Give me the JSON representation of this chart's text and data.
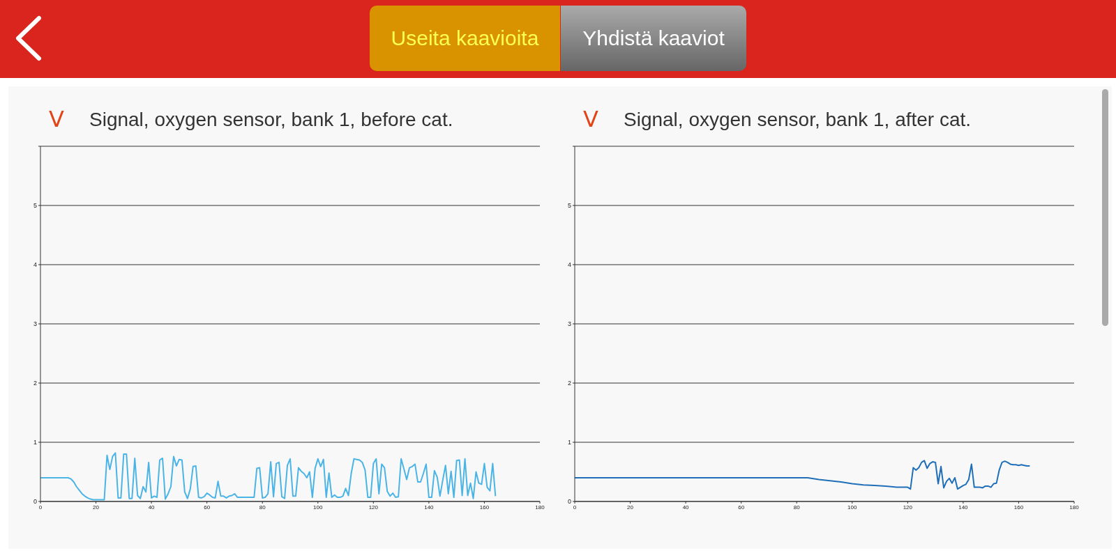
{
  "chart_data": [
    {
      "type": "line",
      "title": "Signal, oxygen sensor, bank 1, before cat.",
      "ylabel": "V",
      "annotations": [
        "Useita kaavioita",
        "Yhdistä kaaviot"
      ],
      "xlim": [
        0,
        180
      ],
      "xticks": [
        0,
        20,
        40,
        60,
        80,
        100,
        120,
        140,
        160,
        180
      ],
      "ylim": [
        0,
        6
      ],
      "yticks": [
        0,
        1,
        2,
        3,
        4,
        5,
        {
          "value": 6,
          "label": null
        }
      ],
      "grid": "y",
      "x": [
        0,
        10,
        11,
        12,
        13,
        14,
        15,
        16,
        17,
        18,
        19,
        23,
        24,
        25,
        26,
        27,
        28,
        29,
        30,
        31,
        32,
        33,
        34,
        35,
        36,
        37,
        38,
        39,
        40,
        41,
        42,
        43,
        44,
        45,
        46,
        47,
        48,
        49,
        50,
        51,
        52,
        53,
        54,
        55,
        56,
        57,
        58,
        59,
        60,
        61,
        62,
        63,
        64,
        65,
        66,
        67,
        68,
        69,
        70,
        71,
        77,
        78,
        79,
        80,
        81,
        82,
        83,
        84,
        85,
        86,
        87,
        88,
        89,
        90,
        91,
        92,
        93,
        94,
        95,
        96,
        97,
        98,
        99,
        100,
        101,
        102,
        103,
        104,
        105,
        106,
        107,
        108,
        109,
        110,
        111,
        112,
        113,
        114,
        115,
        116,
        117,
        118,
        119,
        120,
        121,
        122,
        123,
        124,
        125,
        126,
        127,
        128,
        129,
        130,
        131,
        132,
        133,
        134,
        135,
        136,
        137,
        138,
        139,
        140,
        141,
        142,
        143,
        144,
        145,
        146,
        147,
        148,
        149,
        150,
        151,
        152,
        153,
        154,
        155,
        156,
        157,
        158,
        159,
        160,
        161,
        162,
        163,
        164
      ],
      "series": [
        {
          "color": "#4ab4e6",
          "values": [
            0.4,
            0.4,
            0.38,
            0.33,
            0.25,
            0.19,
            0.13,
            0.09,
            0.06,
            0.04,
            0.03,
            0.03,
            0.78,
            0.54,
            0.76,
            0.82,
            0.06,
            0.06,
            0.8,
            0.8,
            0.05,
            0.05,
            0.73,
            0.1,
            0.05,
            0.25,
            0.16,
            0.66,
            0.06,
            0.09,
            0.07,
            0.7,
            0.73,
            0.04,
            0.13,
            0.25,
            0.76,
            0.6,
            0.71,
            0.7,
            0.16,
            0.05,
            0.21,
            0.59,
            0.6,
            0.07,
            0.06,
            0.08,
            0.14,
            0.11,
            0.07,
            0.06,
            0.34,
            0.09,
            0.09,
            0.06,
            0.09,
            0.1,
            0.13,
            0.07,
            0.07,
            0.56,
            0.57,
            0.06,
            0.07,
            0.13,
            0.67,
            0.08,
            0.64,
            0.66,
            0.08,
            0.05,
            0.61,
            0.72,
            0.09,
            0.09,
            0.57,
            0.51,
            0.47,
            0.4,
            0.5,
            0.07,
            0.56,
            0.72,
            0.59,
            0.71,
            0.07,
            0.48,
            0.07,
            0.11,
            0.07,
            0.07,
            0.09,
            0.22,
            0.1,
            0.47,
            0.72,
            0.71,
            0.7,
            0.66,
            0.53,
            0.07,
            0.07,
            0.64,
            0.72,
            0.13,
            0.63,
            0.57,
            0.17,
            0.09,
            0.14,
            0.07,
            0.08,
            0.72,
            0.55,
            0.37,
            0.57,
            0.59,
            0.63,
            0.33,
            0.33,
            0.47,
            0.63,
            0.07,
            0.07,
            0.52,
            0.41,
            0.09,
            0.36,
            0.61,
            0.13,
            0.51,
            0.07,
            0.69,
            0.7,
            0.1,
            0.72,
            0.1,
            0.31,
            0.05,
            0.5,
            0.31,
            0.29,
            0.64,
            0.24,
            0.18,
            0.64,
            0.09
          ]
        }
      ]
    },
    {
      "type": "line",
      "title": "Signal, oxygen sensor, bank 1, after cat.",
      "ylabel": "V",
      "xlim": [
        0,
        180
      ],
      "xticks": [
        0,
        20,
        40,
        60,
        80,
        100,
        120,
        140,
        160,
        180
      ],
      "ylim": [
        0,
        6
      ],
      "yticks": [
        0,
        1,
        2,
        3,
        4,
        5,
        {
          "value": 6,
          "label": null
        }
      ],
      "grid": "y",
      "x": [
        0,
        20,
        40,
        60,
        84,
        88,
        92,
        96,
        100,
        104,
        108,
        112,
        116,
        120,
        121,
        122,
        123,
        124,
        125,
        126,
        127,
        128,
        129,
        130,
        131,
        132,
        133,
        134,
        135,
        136,
        137,
        138,
        139,
        140,
        141,
        142,
        143,
        144,
        145,
        146,
        147,
        148,
        149,
        150,
        151,
        152,
        153,
        154,
        155,
        156,
        157,
        158,
        159,
        160,
        161,
        162,
        163,
        164
      ],
      "series": [
        {
          "color": "#1f6fb8",
          "values": [
            0.4,
            0.4,
            0.4,
            0.4,
            0.4,
            0.37,
            0.35,
            0.33,
            0.3,
            0.28,
            0.27,
            0.26,
            0.24,
            0.24,
            0.21,
            0.57,
            0.53,
            0.57,
            0.66,
            0.69,
            0.56,
            0.64,
            0.67,
            0.66,
            0.3,
            0.59,
            0.23,
            0.34,
            0.39,
            0.31,
            0.4,
            0.21,
            0.24,
            0.27,
            0.29,
            0.37,
            0.63,
            0.24,
            0.24,
            0.24,
            0.23,
            0.26,
            0.26,
            0.24,
            0.3,
            0.31,
            0.53,
            0.66,
            0.68,
            0.66,
            0.63,
            0.62,
            0.62,
            0.61,
            0.62,
            0.61,
            0.6,
            0.6
          ]
        }
      ]
    }
  ]
}
